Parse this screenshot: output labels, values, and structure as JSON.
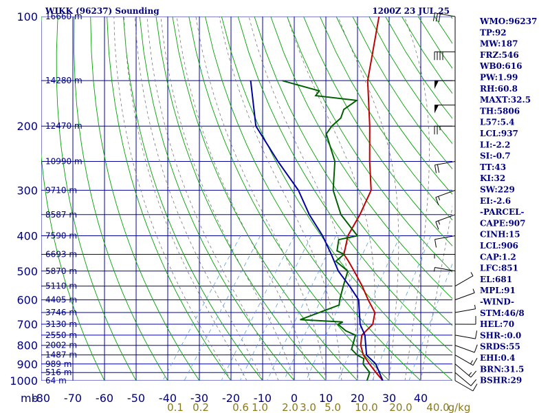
{
  "header": {
    "station": "WIKK (96237) Sounding",
    "time": "1200Z 23 JUL 25"
  },
  "chart_data": {
    "type": "line",
    "title": "WIKK (96237) Sounding",
    "xlabel": "",
    "ylabel": "mb",
    "pressure_ticks": [
      "100",
      "200",
      "300",
      "400",
      "500",
      "600",
      "700",
      "800",
      "900",
      "1000"
    ],
    "height_labels": [
      {
        "p": 100,
        "text": "16660 m"
      },
      {
        "p": 150,
        "text": "14280 m"
      },
      {
        "p": 200,
        "text": "12470 m"
      },
      {
        "p": 250,
        "text": "10990 m"
      },
      {
        "p": 300,
        "text": "9710 m"
      },
      {
        "p": 350,
        "text": "8587 m"
      },
      {
        "p": 400,
        "text": "7590 m"
      },
      {
        "p": 450,
        "text": "6693 m"
      },
      {
        "p": 500,
        "text": "5870 m"
      },
      {
        "p": 550,
        "text": "5110 m"
      },
      {
        "p": 600,
        "text": "4405 m"
      },
      {
        "p": 650,
        "text": "3746 m"
      },
      {
        "p": 700,
        "text": "3130 m"
      },
      {
        "p": 750,
        "text": "2550 m"
      },
      {
        "p": 800,
        "text": "2002 m"
      },
      {
        "p": 850,
        "text": "1487 m"
      },
      {
        "p": 900,
        "text": "989 m"
      },
      {
        "p": 950,
        "text": "516 m"
      },
      {
        "p": 1000,
        "text": "64 m"
      }
    ],
    "temp_ticks": [
      "-80",
      "-70",
      "-60",
      "-50",
      "-40",
      "-30",
      "-20",
      "-10",
      "0",
      "10",
      "20",
      "30",
      "40"
    ],
    "mixing_ratio_labels": [
      "0.1",
      "0.2",
      "0.6",
      "1.0",
      "2.0",
      "3.0",
      "5.0",
      "10.0",
      "20.0",
      "40.0"
    ],
    "mixing_ratio_unit": "g/kg",
    "series": [
      {
        "name": "",
        "color": "#c00000",
        "kind": "temperature",
        "x": [
          28,
          24,
          20,
          16,
          13,
          11,
          12,
          10,
          5,
          0,
          -6,
          -10,
          -13,
          -16,
          -17,
          -19,
          -26,
          -34,
          -45,
          -56,
          -70
        ],
        "y": [
          1000,
          950,
          900,
          850,
          800,
          750,
          700,
          650,
          600,
          550,
          500,
          470,
          450,
          400,
          350,
          300,
          250,
          200,
          150,
          100,
          85
        ]
      },
      {
        "name": "",
        "color": "#006000",
        "kind": "dewpoint",
        "x": [
          23,
          22,
          18,
          17,
          14,
          11,
          9,
          5,
          1,
          2,
          -12,
          -3,
          -4,
          -6,
          -8,
          -14,
          -13,
          -16,
          -18,
          -13,
          -23,
          -31,
          -37,
          -46,
          -46,
          -45,
          -46,
          -44,
          -58,
          -58,
          -72
        ],
        "y": [
          1000,
          950,
          900,
          870,
          850,
          820,
          750,
          730,
          700,
          690,
          680,
          620,
          600,
          550,
          500,
          470,
          450,
          440,
          410,
          400,
          350,
          300,
          250,
          210,
          200,
          190,
          180,
          170,
          165,
          160,
          150
        ]
      },
      {
        "name": "",
        "color": "#0000a0",
        "kind": "parcel",
        "x": [
          28,
          22,
          17,
          12,
          8,
          2,
          -4,
          -11,
          -17,
          -24,
          -33,
          -42,
          -55,
          -70,
          -82
        ],
        "y": [
          1000,
          900,
          850,
          750,
          700,
          600,
          550,
          500,
          450,
          400,
          350,
          300,
          250,
          200,
          150
        ]
      }
    ],
    "indices": [
      "WMO:96237",
      "TP:92",
      "MW:187",
      "FRZ:546",
      "WB0:616",
      "PW:1.99",
      "RH:60.8",
      "MAXT:32.5",
      "TH:5806",
      "L57:5.4",
      "LCL:937",
      "LI:-2.2",
      "SI:-0.7",
      "TT:43",
      "KI:32",
      "SW:229",
      "EI:-2.6",
      "-PARCEL-",
      "CAPE:907",
      "CINH:15",
      "LCL:906",
      "CAP:1.2",
      "LFC:851",
      "EL:681",
      "MPL:91",
      "-WIND-",
      "STM:46/8",
      "HEL:70",
      "SHR-:0.0",
      "SRDS:55",
      "EHI:0.4",
      "BRN:31.5",
      "BSHR:29"
    ],
    "wind_barbs": [
      {
        "p": 1000,
        "dir": 120,
        "spd": 10
      },
      {
        "p": 950,
        "dir": 130,
        "spd": 10
      },
      {
        "p": 900,
        "dir": 130,
        "spd": 15
      },
      {
        "p": 850,
        "dir": 120,
        "spd": 15
      },
      {
        "p": 800,
        "dir": 110,
        "spd": 10
      },
      {
        "p": 750,
        "dir": 100,
        "spd": 10
      },
      {
        "p": 700,
        "dir": 90,
        "spd": 10
      },
      {
        "p": 650,
        "dir": 80,
        "spd": 5
      },
      {
        "p": 600,
        "dir": 70,
        "spd": 5
      },
      {
        "p": 550,
        "dir": 60,
        "spd": 5
      },
      {
        "p": 500,
        "dir": 280,
        "spd": 5
      },
      {
        "p": 450,
        "dir": 270,
        "spd": 5
      },
      {
        "p": 400,
        "dir": 260,
        "spd": 10
      },
      {
        "p": 350,
        "dir": 250,
        "spd": 15
      },
      {
        "p": 300,
        "dir": 250,
        "spd": 15
      },
      {
        "p": 250,
        "dir": 260,
        "spd": 20
      },
      {
        "p": 200,
        "dir": 270,
        "spd": 25
      },
      {
        "p": 175,
        "dir": 270,
        "spd": 50
      },
      {
        "p": 150,
        "dir": 270,
        "spd": 50
      },
      {
        "p": 125,
        "dir": 270,
        "spd": 40
      },
      {
        "p": 100,
        "dir": 280,
        "spd": 30
      }
    ]
  }
}
